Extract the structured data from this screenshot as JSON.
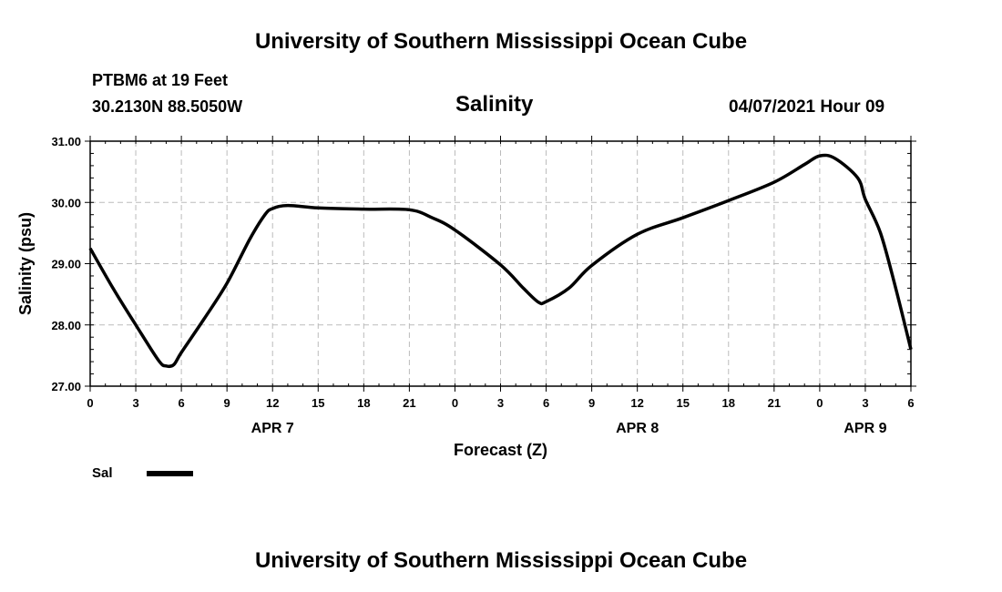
{
  "header": {
    "title": "University of Southern Mississippi Ocean Cube",
    "station": "PTBM6 at 19 Feet",
    "location": "30.2130N  88.5050W",
    "variable": "Salinity",
    "datetime": "04/07/2021 Hour 09"
  },
  "footer": {
    "title": "University of Southern Mississippi Ocean Cube"
  },
  "chart_data": {
    "type": "line",
    "title": "Salinity",
    "xlabel": "Forecast (Z)",
    "ylabel": "Salinity (psu)",
    "xlim": [
      0,
      54
    ],
    "ylim": [
      27,
      31
    ],
    "grid": true,
    "x_ticks": [
      0,
      3,
      6,
      9,
      12,
      15,
      18,
      21,
      24,
      27,
      30,
      33,
      36,
      39,
      42,
      45,
      48,
      51,
      54
    ],
    "x_tick_labels": [
      "0",
      "3",
      "6",
      "9",
      "12",
      "15",
      "18",
      "21",
      "0",
      "3",
      "6",
      "9",
      "12",
      "15",
      "18",
      "21",
      "0",
      "3",
      "6"
    ],
    "y_ticks": [
      27,
      28,
      29,
      30,
      31
    ],
    "y_tick_labels": [
      "27.00",
      "28.00",
      "29.00",
      "30.00",
      "31.00"
    ],
    "date_labels": [
      {
        "label": "APR 7",
        "x": 12
      },
      {
        "label": "APR 8",
        "x": 36
      },
      {
        "label": "APR 9",
        "x": 51
      }
    ],
    "legend": {
      "label": "Sal",
      "placement": "bottom-left"
    },
    "series": [
      {
        "name": "Sal",
        "color": "#000000",
        "x": [
          0,
          1.5,
          3,
          4.5,
          5,
          5.5,
          6,
          7.5,
          9,
          10.5,
          11.5,
          12,
          13,
          15,
          18,
          21,
          22.5,
          24,
          27,
          28.5,
          29.5,
          30,
          31.5,
          33,
          36,
          39,
          42,
          45,
          47,
          48,
          49,
          50.5,
          51,
          52,
          53,
          54
        ],
        "values": [
          29.25,
          28.6,
          28.0,
          27.42,
          27.33,
          27.35,
          27.55,
          28.1,
          28.68,
          29.4,
          29.8,
          29.9,
          29.95,
          29.91,
          29.89,
          29.88,
          29.75,
          29.55,
          28.98,
          28.6,
          28.37,
          28.38,
          28.6,
          28.97,
          29.48,
          29.75,
          30.03,
          30.33,
          30.62,
          30.76,
          30.72,
          30.4,
          30.05,
          29.5,
          28.6,
          27.6
        ]
      }
    ]
  }
}
